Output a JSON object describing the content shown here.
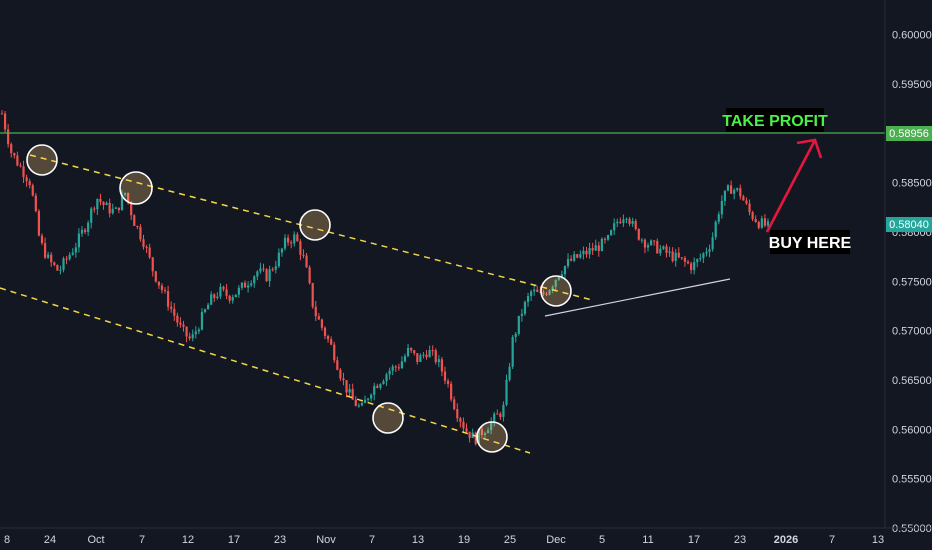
{
  "chart_data": {
    "type": "candlestick",
    "title": "",
    "xlabel": "",
    "ylabel": "",
    "ylim": [
      0.55,
      0.6035
    ],
    "y_ticks": [
      "0.60000",
      "0.59500",
      "0.59000",
      "0.58500",
      "0.58000",
      "0.57500",
      "0.57000",
      "0.56500",
      "0.56000",
      "0.55500",
      "0.55000"
    ],
    "x_ticks": [
      {
        "label": "8",
        "bold": false
      },
      {
        "label": "24",
        "bold": false
      },
      {
        "label": "Oct",
        "bold": false
      },
      {
        "label": "7",
        "bold": false
      },
      {
        "label": "12",
        "bold": false
      },
      {
        "label": "17",
        "bold": false
      },
      {
        "label": "23",
        "bold": false
      },
      {
        "label": "Nov",
        "bold": false
      },
      {
        "label": "7",
        "bold": false
      },
      {
        "label": "13",
        "bold": false
      },
      {
        "label": "19",
        "bold": false
      },
      {
        "label": "25",
        "bold": false
      },
      {
        "label": "Dec",
        "bold": false
      },
      {
        "label": "5",
        "bold": false
      },
      {
        "label": "11",
        "bold": false
      },
      {
        "label": "17",
        "bold": false
      },
      {
        "label": "23",
        "bold": false
      },
      {
        "label": "2026",
        "bold": true
      },
      {
        "label": "7",
        "bold": false
      },
      {
        "label": "13",
        "bold": false
      }
    ],
    "price_path": [
      0.592,
      0.588,
      0.5865,
      0.585,
      0.579,
      0.577,
      0.576,
      0.5775,
      0.579,
      0.581,
      0.5835,
      0.5825,
      0.582,
      0.584,
      0.581,
      0.579,
      0.576,
      0.574,
      0.572,
      0.57,
      0.569,
      0.571,
      0.573,
      0.574,
      0.5735,
      0.574,
      0.575,
      0.576,
      0.5755,
      0.577,
      0.579,
      0.5795,
      0.577,
      0.572,
      0.57,
      0.568,
      0.565,
      0.563,
      0.562,
      0.564,
      0.565,
      0.566,
      0.5665,
      0.568,
      0.567,
      0.568,
      0.567,
      0.565,
      0.562,
      0.56,
      0.559,
      0.56,
      0.561,
      0.562,
      0.569,
      0.572,
      0.574,
      0.5735,
      0.5745,
      0.576,
      0.577,
      0.5775,
      0.578,
      0.5785,
      0.579,
      0.581,
      0.582,
      0.58,
      0.579,
      0.5785,
      0.578,
      0.5775,
      0.577,
      0.5765,
      0.5775,
      0.579,
      0.583,
      0.5845,
      0.584,
      0.582,
      0.581,
      0.5805
    ],
    "series": [
      {
        "name": "",
        "type": "horizontal_level",
        "value": 0.58956,
        "color": "#4caf50"
      },
      {
        "name": "",
        "type": "current_price",
        "value": 0.5804,
        "color": "#26a69a"
      }
    ],
    "price_labels": {
      "level": "0.58956",
      "current": "0.58040"
    },
    "annotations": {
      "take_profit": "TAKE PROFIT",
      "buy_here": "BUY HERE"
    },
    "colors": {
      "background": "#131722",
      "up": "#26a69a",
      "down": "#ef5350",
      "channel": "#f5d742",
      "take_profit_text": "#4cf04c",
      "arrow": "#e5173f"
    },
    "grid": false,
    "legend": "none"
  }
}
